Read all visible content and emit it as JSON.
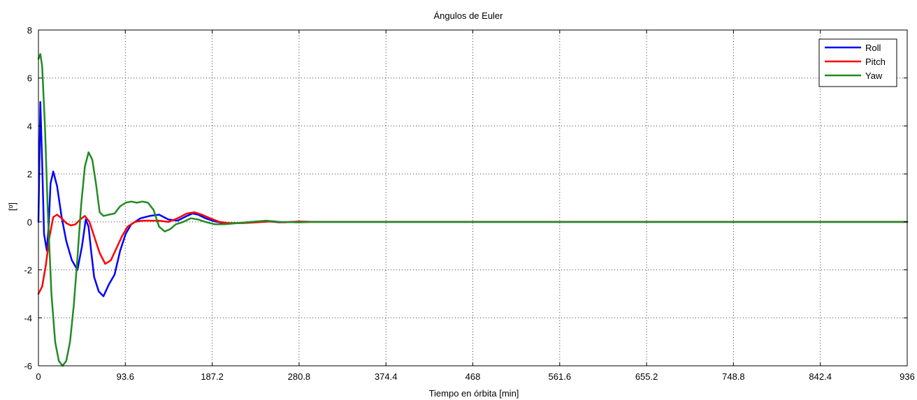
{
  "chart_data": {
    "type": "line",
    "title": "Ángulos de Euler",
    "xlabel": "Tiempo en órbita [min]",
    "ylabel": "[º]",
    "xlim": [
      0,
      936
    ],
    "ylim": [
      -6,
      8
    ],
    "xticks": [
      0,
      93.6,
      187.2,
      280.8,
      374.4,
      468,
      561.6,
      655.2,
      748.8,
      842.4,
      936
    ],
    "xtick_labels": [
      "0",
      "93.6",
      "187.2",
      "280.8",
      "374.4",
      "468",
      "561.6",
      "655.2",
      "748.8",
      "842.4",
      "936"
    ],
    "yticks": [
      -6,
      -4,
      -2,
      0,
      2,
      4,
      6,
      8
    ],
    "ytick_labels": [
      "-6",
      "-4",
      "-2",
      "0",
      "2",
      "4",
      "6",
      "8"
    ],
    "grid": true,
    "legend_position": "top-right",
    "series": [
      {
        "name": "Roll",
        "color": "#0000ff",
        "x": [
          0,
          2,
          4,
          6,
          9,
          11,
          13,
          16,
          20,
          25,
          30,
          36,
          42,
          47,
          51,
          54,
          57,
          60,
          65,
          70,
          76,
          82,
          88,
          94,
          100,
          110,
          120,
          130,
          140,
          150,
          160,
          166,
          172,
          180,
          190,
          200,
          215,
          230,
          245,
          260,
          280,
          300,
          330,
          936
        ],
        "y": [
          0,
          5.0,
          2.5,
          -0.5,
          -1.2,
          -0.2,
          1.6,
          2.1,
          1.5,
          0.2,
          -0.8,
          -1.6,
          -2.0,
          -1.0,
          0.1,
          -0.2,
          -1.3,
          -2.3,
          -2.9,
          -3.1,
          -2.6,
          -2.2,
          -1.2,
          -0.5,
          -0.1,
          0.15,
          0.25,
          0.3,
          0.1,
          0.05,
          0.25,
          0.35,
          0.3,
          0.15,
          0.02,
          -0.05,
          -0.05,
          0.0,
          0.03,
          -0.02,
          0.01,
          0.0,
          0.0,
          0.0
        ]
      },
      {
        "name": "Pitch",
        "color": "#ff0000",
        "x": [
          0,
          4,
          8,
          12,
          16,
          20,
          25,
          30,
          35,
          40,
          45,
          50,
          55,
          60,
          66,
          72,
          78,
          84,
          90,
          96,
          104,
          112,
          120,
          130,
          140,
          150,
          160,
          168,
          176,
          185,
          195,
          205,
          220,
          235,
          250,
          265,
          280,
          300,
          330,
          936
        ],
        "y": [
          -3.0,
          -2.7,
          -1.8,
          -0.6,
          0.2,
          0.3,
          0.15,
          -0.05,
          -0.15,
          -0.1,
          0.1,
          0.25,
          0.0,
          -0.6,
          -1.3,
          -1.75,
          -1.6,
          -1.1,
          -0.6,
          -0.2,
          0.0,
          0.05,
          0.05,
          0.05,
          0.0,
          0.15,
          0.35,
          0.4,
          0.3,
          0.15,
          0.0,
          -0.05,
          -0.05,
          -0.02,
          0.02,
          -0.02,
          0.01,
          0.0,
          0.0,
          0.0
        ]
      },
      {
        "name": "Yaw",
        "color": "#228b22",
        "x": [
          0,
          2,
          4,
          7,
          10,
          14,
          18,
          22,
          26,
          30,
          34,
          38,
          42,
          46,
          50,
          54,
          58,
          62,
          66,
          70,
          76,
          82,
          88,
          94,
          100,
          106,
          112,
          118,
          124,
          130,
          136,
          142,
          148,
          156,
          164,
          172,
          180,
          190,
          200,
          215,
          230,
          245,
          260,
          280,
          300,
          330,
          936
        ],
        "y": [
          6.8,
          7.0,
          6.5,
          4.0,
          0.5,
          -3.0,
          -5.0,
          -5.8,
          -6.0,
          -5.8,
          -5.0,
          -3.5,
          -1.5,
          0.7,
          2.3,
          2.9,
          2.6,
          1.6,
          0.4,
          0.25,
          0.3,
          0.35,
          0.65,
          0.8,
          0.85,
          0.8,
          0.85,
          0.8,
          0.5,
          -0.2,
          -0.4,
          -0.3,
          -0.1,
          0.0,
          0.15,
          0.1,
          0.0,
          -0.1,
          -0.1,
          -0.05,
          0.0,
          0.05,
          0.0,
          -0.02,
          0.0,
          0.0,
          0.0
        ]
      }
    ]
  }
}
